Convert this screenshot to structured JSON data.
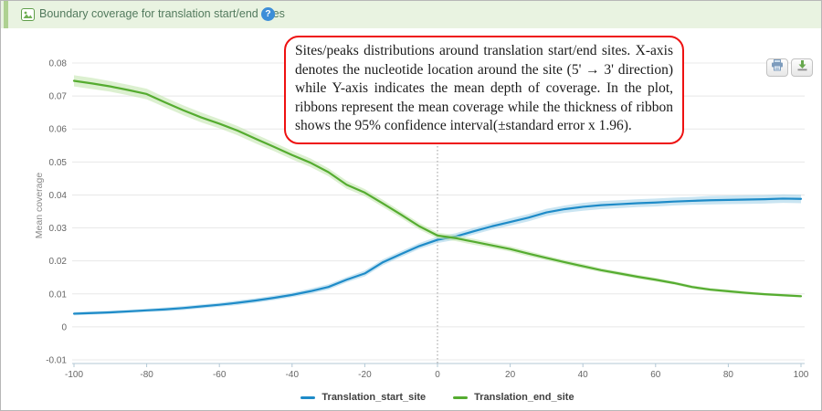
{
  "header": {
    "title": "Boundary coverage for translation start/end sites",
    "help_icon": "?"
  },
  "toolbar": {
    "buttons": [
      {
        "icon": "print-icon"
      },
      {
        "icon": "download-icon"
      }
    ]
  },
  "annotation": {
    "text": "Sites/peaks distributions around translation start/end sites. X-axis denotes the nucleotide location around the site (5' → 3' direction) while Y-axis indicates the mean depth of coverage. In the plot, ribbons represent the mean coverage while the thickness of ribbon shows the 95% confidence interval(±standard error x 1.96).",
    "border_color": "#ee1111"
  },
  "chart_data": {
    "type": "line",
    "title": "",
    "xlabel": "",
    "ylabel": "Mean coverage",
    "xlim": [
      -100,
      100
    ],
    "ylim": [
      -0.01,
      0.08
    ],
    "grid": true,
    "legend_position": "bottom",
    "zero_reference_line_x": 0,
    "x_ticks": [
      -100,
      -80,
      -60,
      -40,
      -20,
      0,
      20,
      40,
      60,
      80,
      100
    ],
    "y_ticks": [
      -0.01,
      0,
      0.01,
      0.02,
      0.03,
      0.04,
      0.05,
      0.06,
      0.07,
      0.08
    ],
    "y_tick_labels": [
      "-0.01",
      "0",
      "0.01",
      "0.02",
      "0.03",
      "0.04",
      "0.05",
      "0.06",
      "0.07",
      "0.08"
    ],
    "x": [
      -100,
      -95,
      -90,
      -85,
      -80,
      -75,
      -70,
      -65,
      -60,
      -55,
      -50,
      -45,
      -40,
      -35,
      -30,
      -25,
      -20,
      -15,
      -10,
      -5,
      0,
      5,
      10,
      15,
      20,
      25,
      30,
      35,
      40,
      45,
      50,
      55,
      60,
      65,
      70,
      75,
      80,
      85,
      90,
      95,
      100
    ],
    "series": [
      {
        "name": "Translation_start_site",
        "color": "#1e8bc8",
        "ribbon_color": "#9fd0e8",
        "y": [
          0.004,
          0.0042,
          0.0044,
          0.0047,
          0.005,
          0.0053,
          0.0057,
          0.0062,
          0.0067,
          0.0073,
          0.008,
          0.0088,
          0.0097,
          0.0108,
          0.0121,
          0.0143,
          0.0162,
          0.0196,
          0.0221,
          0.0245,
          0.0264,
          0.0274,
          0.029,
          0.0305,
          0.0318,
          0.0331,
          0.0347,
          0.0357,
          0.0364,
          0.0369,
          0.0372,
          0.0375,
          0.0377,
          0.038,
          0.0382,
          0.0384,
          0.0385,
          0.0386,
          0.0387,
          0.0389,
          0.0388
        ],
        "ci": [
          0.0005,
          0.0005,
          0.0005,
          0.0005,
          0.0005,
          0.0006,
          0.0006,
          0.0006,
          0.0006,
          0.0007,
          0.0007,
          0.0007,
          0.0007,
          0.0008,
          0.0008,
          0.0008,
          0.0009,
          0.0009,
          0.0009,
          0.0009,
          0.001,
          0.001,
          0.001,
          0.001,
          0.0011,
          0.0011,
          0.0011,
          0.0011,
          0.0012,
          0.0012,
          0.0012,
          0.0012,
          0.0012,
          0.0012,
          0.0012,
          0.0013,
          0.0013,
          0.0013,
          0.0013,
          0.0013,
          0.0013
        ]
      },
      {
        "name": "Translation_end_site",
        "color": "#55ac30",
        "ribbon_color": "#bfe3aa",
        "y": [
          0.0746,
          0.0738,
          0.0729,
          0.0718,
          0.0706,
          0.0681,
          0.0657,
          0.0635,
          0.0616,
          0.0595,
          0.057,
          0.0546,
          0.0521,
          0.0498,
          0.0469,
          0.0431,
          0.0407,
          0.0374,
          0.034,
          0.0305,
          0.0277,
          0.0269,
          0.0258,
          0.0247,
          0.0236,
          0.0222,
          0.0209,
          0.0196,
          0.0184,
          0.0172,
          0.0162,
          0.0152,
          0.0143,
          0.0133,
          0.0121,
          0.0113,
          0.0108,
          0.0103,
          0.0099,
          0.0096,
          0.0093
        ],
        "ci": [
          0.0017,
          0.0017,
          0.0016,
          0.0016,
          0.0016,
          0.0015,
          0.0015,
          0.0015,
          0.0014,
          0.0014,
          0.0014,
          0.0013,
          0.0013,
          0.0013,
          0.0012,
          0.0012,
          0.0011,
          0.0011,
          0.001,
          0.001,
          0.0009,
          0.0009,
          0.0009,
          0.0008,
          0.0008,
          0.0008,
          0.0007,
          0.0007,
          0.0007,
          0.0006,
          0.0006,
          0.0006,
          0.0006,
          0.0005,
          0.0005,
          0.0005,
          0.0005,
          0.0005,
          0.0004,
          0.0004,
          0.0004
        ]
      }
    ]
  }
}
